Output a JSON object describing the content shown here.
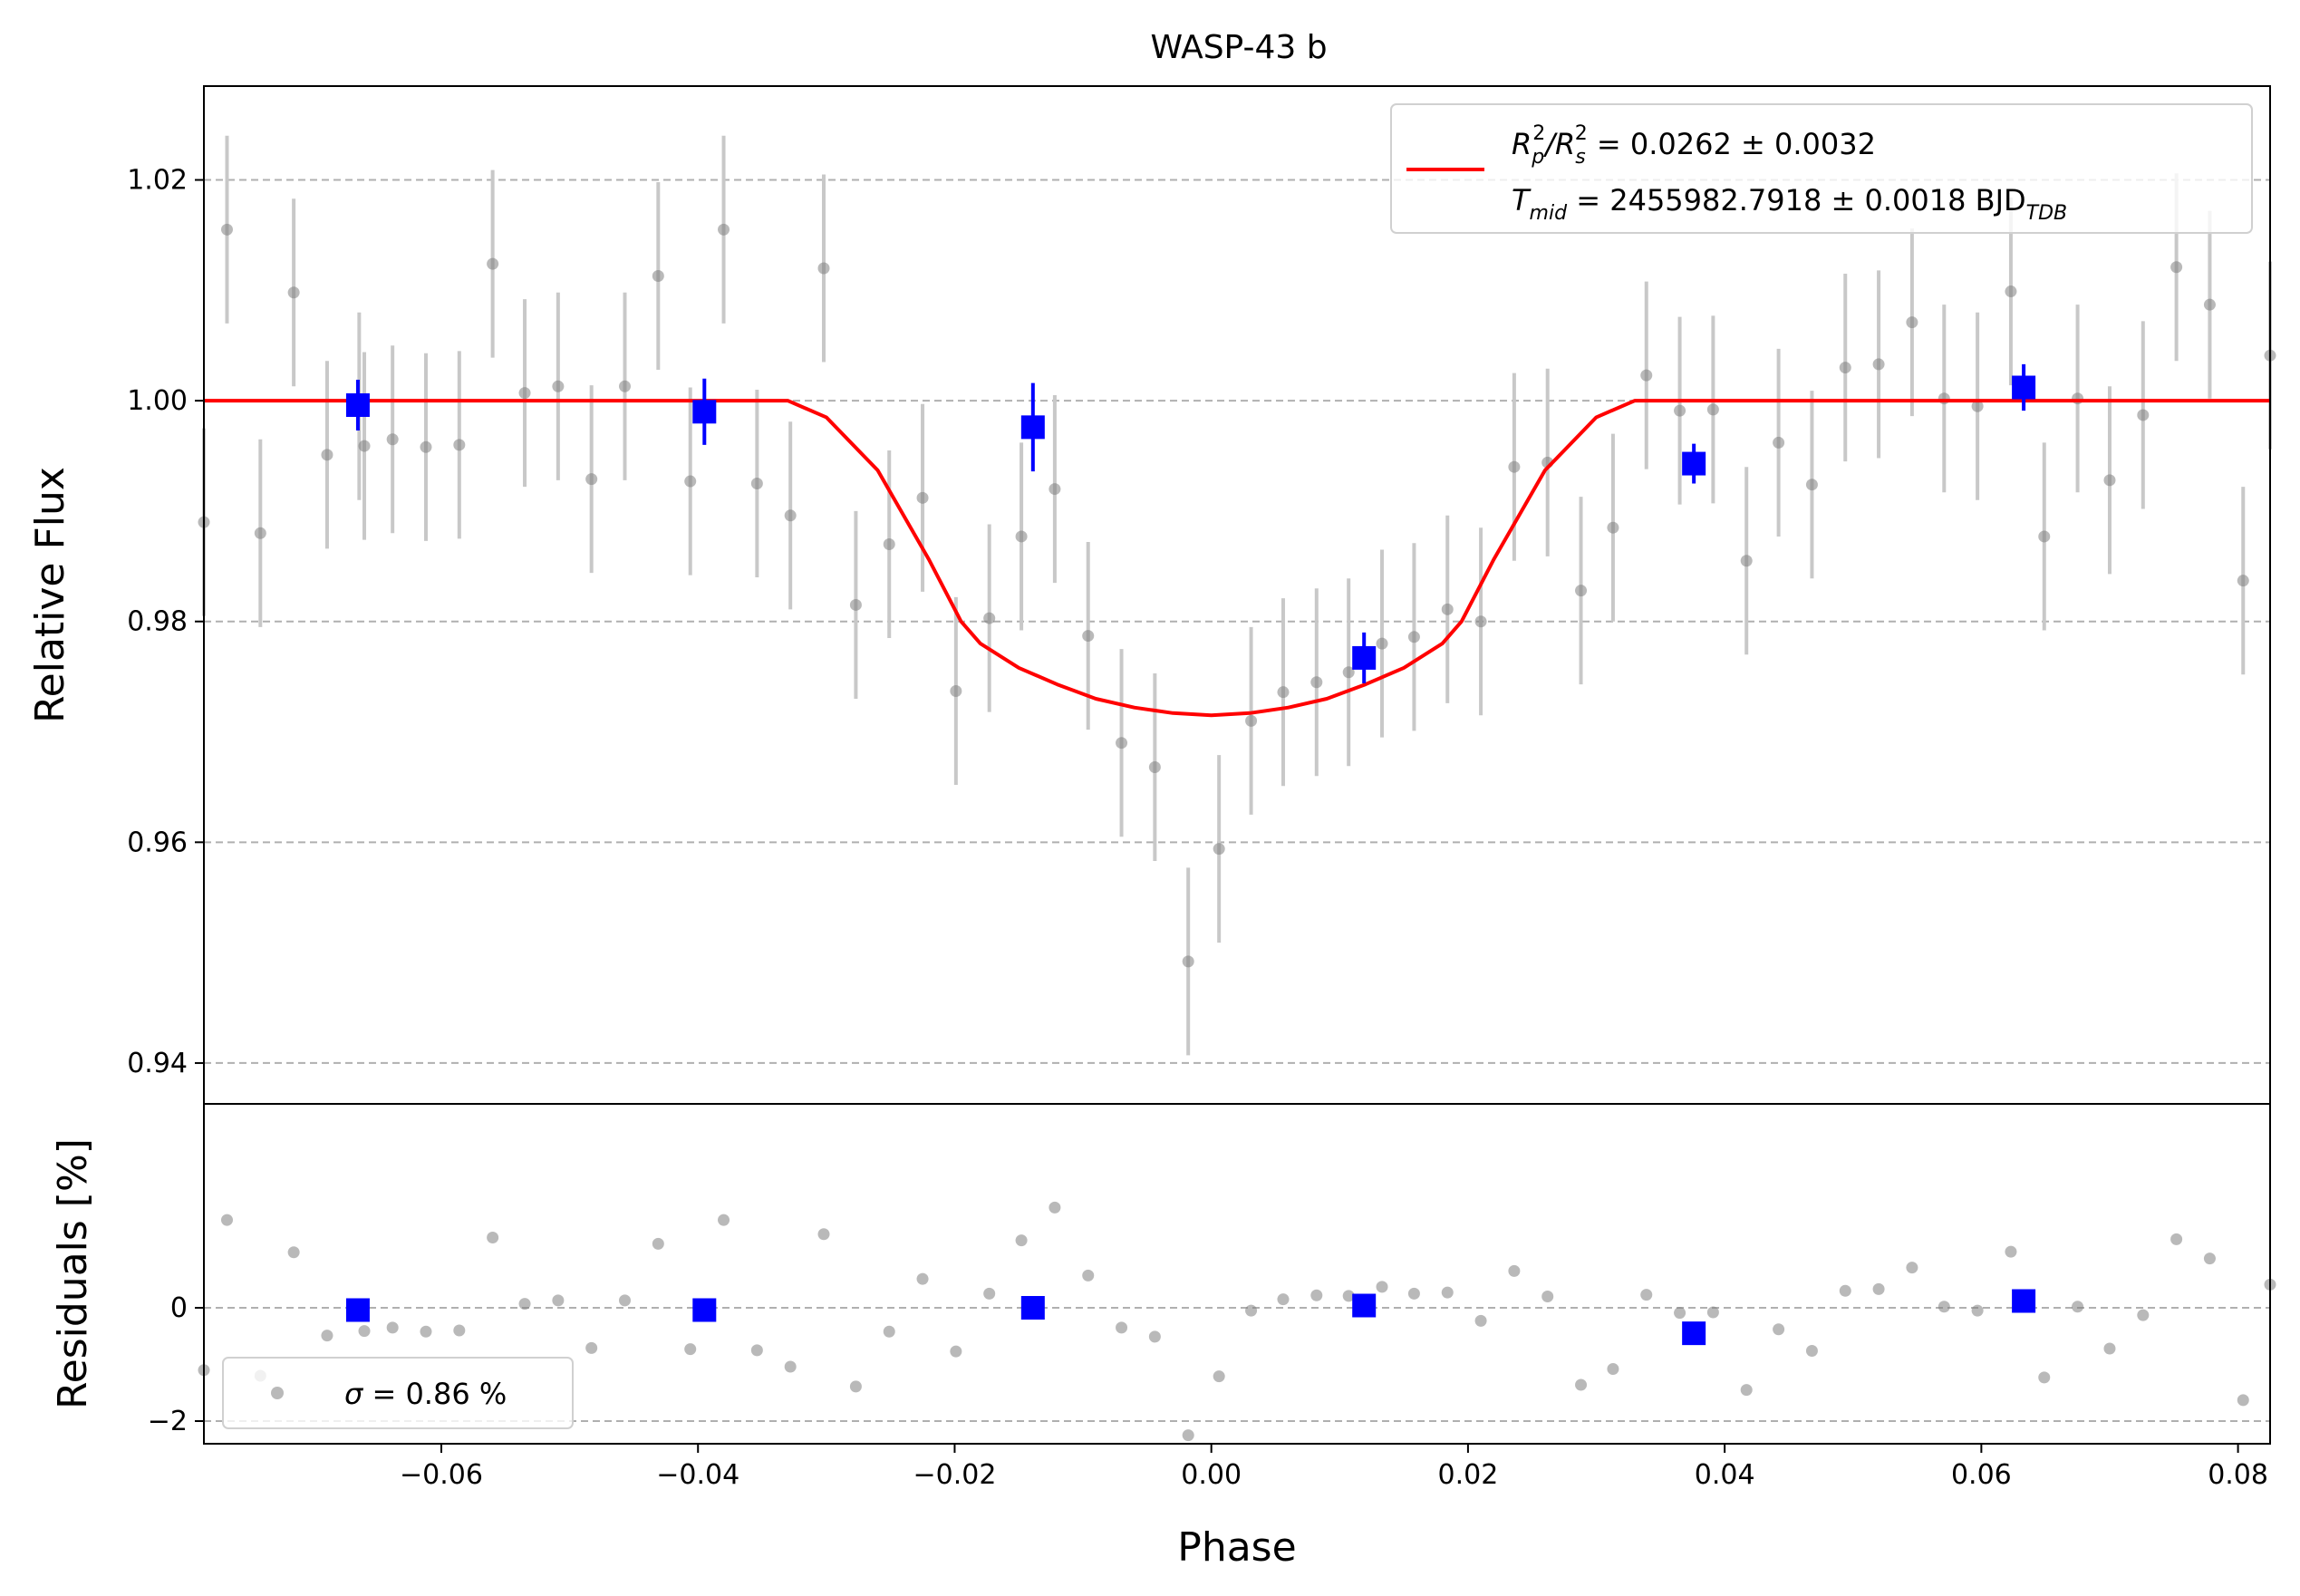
{
  "chart_data": {
    "type": "scatter",
    "title": "WASP-43 b",
    "xlabel": "Phase",
    "xlim": [
      -0.0785,
      0.0825
    ],
    "grid": "horizontal dashed",
    "colors": {
      "raw": "#808080",
      "raw_error": "#c8c8c8",
      "binned": "#0000ff",
      "model": "#ff0000"
    },
    "top_panel": {
      "ylabel": "Relative Flux",
      "ylim": [
        0.9363,
        1.0285
      ],
      "yticks": [
        0.94,
        0.96,
        0.98,
        1.0,
        1.02
      ],
      "ytick_labels": [
        "0.94",
        "0.96",
        "0.98",
        "1.00",
        "1.02"
      ],
      "legend": {
        "placement": "top-right",
        "line1_pre": "R",
        "line1_sub1": "p",
        "line1_sup1": "2",
        "line1_mid": "/R",
        "line1_sub2": "s",
        "line1_sup2": "2",
        "line1_post": " = 0.0262 ± 0.0032",
        "line2_pre": "T",
        "line2_sub": "mid",
        "line2_post": " = 2455982.7918 ± 0.0018 BJD",
        "line2_sub2": "TDB"
      },
      "raw": [
        {
          "x": -0.0785,
          "y": 0.989,
          "err": 0.0085
        },
        {
          "x": -0.0767,
          "y": 1.0155,
          "err": 0.0085
        },
        {
          "x": -0.0741,
          "y": 0.988,
          "err": 0.0085
        },
        {
          "x": -0.0715,
          "y": 1.0098,
          "err": 0.0085
        },
        {
          "x": -0.0689,
          "y": 0.9951,
          "err": 0.0085
        },
        {
          "x": -0.0664,
          "y": 0.9995,
          "err": 0.0085
        },
        {
          "x": -0.066,
          "y": 0.9959,
          "err": 0.0085
        },
        {
          "x": -0.0638,
          "y": 0.9965,
          "err": 0.0085
        },
        {
          "x": -0.0612,
          "y": 0.9958,
          "err": 0.0085
        },
        {
          "x": -0.0586,
          "y": 0.996,
          "err": 0.0085
        },
        {
          "x": -0.056,
          "y": 1.0124,
          "err": 0.0085
        },
        {
          "x": -0.0535,
          "y": 1.0007,
          "err": 0.0085
        },
        {
          "x": -0.0509,
          "y": 1.0013,
          "err": 0.0085
        },
        {
          "x": -0.0483,
          "y": 0.9929,
          "err": 0.0085
        },
        {
          "x": -0.0457,
          "y": 1.0013,
          "err": 0.0085
        },
        {
          "x": -0.0431,
          "y": 1.0113,
          "err": 0.0085
        },
        {
          "x": -0.0406,
          "y": 0.9927,
          "err": 0.0085
        },
        {
          "x": -0.038,
          "y": 1.0155,
          "err": 0.0085
        },
        {
          "x": -0.0354,
          "y": 0.9925,
          "err": 0.0085
        },
        {
          "x": -0.0328,
          "y": 0.9896,
          "err": 0.0085
        },
        {
          "x": -0.0302,
          "y": 1.012,
          "err": 0.0085
        },
        {
          "x": -0.0277,
          "y": 0.9815,
          "err": 0.0085
        },
        {
          "x": -0.0251,
          "y": 0.987,
          "err": 0.0085
        },
        {
          "x": -0.0225,
          "y": 0.9912,
          "err": 0.0085
        },
        {
          "x": -0.0199,
          "y": 0.9737,
          "err": 0.0085
        },
        {
          "x": -0.0173,
          "y": 0.9803,
          "err": 0.0085
        },
        {
          "x": -0.0148,
          "y": 0.9877,
          "err": 0.0085
        },
        {
          "x": -0.0122,
          "y": 0.992,
          "err": 0.0085
        },
        {
          "x": -0.0096,
          "y": 0.9787,
          "err": 0.0085
        },
        {
          "x": -0.007,
          "y": 0.969,
          "err": 0.0085
        },
        {
          "x": -0.0044,
          "y": 0.9668,
          "err": 0.0085
        },
        {
          "x": -0.0018,
          "y": 0.9492,
          "err": 0.0085
        },
        {
          "x": 0.0006,
          "y": 0.9594,
          "err": 0.0085
        },
        {
          "x": 0.0031,
          "y": 0.971,
          "err": 0.0085
        },
        {
          "x": 0.0056,
          "y": 0.9736,
          "err": 0.0085
        },
        {
          "x": 0.0082,
          "y": 0.9745,
          "err": 0.0085
        },
        {
          "x": 0.0107,
          "y": 0.9754,
          "err": 0.0085
        },
        {
          "x": 0.0133,
          "y": 0.978,
          "err": 0.0085
        },
        {
          "x": 0.0158,
          "y": 0.9786,
          "err": 0.0085
        },
        {
          "x": 0.0184,
          "y": 0.9811,
          "err": 0.0085
        },
        {
          "x": 0.021,
          "y": 0.98,
          "err": 0.0085
        },
        {
          "x": 0.0236,
          "y": 0.994,
          "err": 0.0085
        },
        {
          "x": 0.0262,
          "y": 0.9944,
          "err": 0.0085
        },
        {
          "x": 0.0288,
          "y": 0.9828,
          "err": 0.0085
        },
        {
          "x": 0.0313,
          "y": 0.9885,
          "err": 0.0085
        },
        {
          "x": 0.0339,
          "y": 1.0023,
          "err": 0.0085
        },
        {
          "x": 0.0365,
          "y": 0.9991,
          "err": 0.0085
        },
        {
          "x": 0.0391,
          "y": 0.9992,
          "err": 0.0085
        },
        {
          "x": 0.0417,
          "y": 0.9855,
          "err": 0.0085
        },
        {
          "x": 0.0442,
          "y": 0.9962,
          "err": 0.0085
        },
        {
          "x": 0.0468,
          "y": 0.9924,
          "err": 0.0085
        },
        {
          "x": 0.0494,
          "y": 1.003,
          "err": 0.0085
        },
        {
          "x": 0.052,
          "y": 1.0033,
          "err": 0.0085
        },
        {
          "x": 0.0546,
          "y": 1.0071,
          "err": 0.0085
        },
        {
          "x": 0.0571,
          "y": 1.0002,
          "err": 0.0085
        },
        {
          "x": 0.0597,
          "y": 0.9995,
          "err": 0.0085
        },
        {
          "x": 0.0623,
          "y": 1.0099,
          "err": 0.0085
        },
        {
          "x": 0.0649,
          "y": 0.9877,
          "err": 0.0085
        },
        {
          "x": 0.0675,
          "y": 1.0002,
          "err": 0.0085
        },
        {
          "x": 0.07,
          "y": 0.9928,
          "err": 0.0085
        },
        {
          "x": 0.0726,
          "y": 0.9987,
          "err": 0.0085
        },
        {
          "x": 0.0752,
          "y": 1.0121,
          "err": 0.0085
        },
        {
          "x": 0.0778,
          "y": 1.0087,
          "err": 0.0085
        },
        {
          "x": 0.0804,
          "y": 0.9837,
          "err": 0.0085
        },
        {
          "x": 0.0825,
          "y": 1.0041,
          "err": 0.0085
        }
      ],
      "binned": [
        {
          "x": -0.0665,
          "y": 0.9996,
          "err": 0.0023
        },
        {
          "x": -0.0395,
          "y": 0.999,
          "err": 0.003
        },
        {
          "x": -0.0139,
          "y": 0.9976,
          "err": 0.004
        },
        {
          "x": 0.0119,
          "y": 0.9767,
          "err": 0.0023
        },
        {
          "x": 0.0376,
          "y": 0.9943,
          "err": 0.0018
        },
        {
          "x": 0.0633,
          "y": 1.0012,
          "err": 0.0021
        }
      ],
      "model": {
        "x": [
          -0.0785,
          -0.033,
          -0.03,
          -0.026,
          -0.022,
          -0.0195,
          -0.018,
          -0.015,
          -0.012,
          -0.009,
          -0.006,
          -0.003,
          0.0,
          0.003,
          0.006,
          0.009,
          0.012,
          0.015,
          0.018,
          0.0195,
          0.022,
          0.026,
          0.03,
          0.033,
          0.0825
        ],
        "y": [
          1.0,
          1.0,
          0.9985,
          0.9937,
          0.9856,
          0.98,
          0.978,
          0.9758,
          0.9743,
          0.973,
          0.9722,
          0.9717,
          0.9715,
          0.9717,
          0.9722,
          0.973,
          0.9743,
          0.9758,
          0.978,
          0.98,
          0.9856,
          0.9937,
          0.9985,
          1.0,
          1.0
        ]
      }
    },
    "bottom_panel": {
      "ylabel": "Residuals [%]",
      "ylim": [
        -2.4,
        3.6
      ],
      "yticks": [
        -2,
        0
      ],
      "ytick_labels": [
        "−2",
        "0"
      ],
      "legend": {
        "placement": "lower-left",
        "sigma_symbol": "σ",
        "sigma_text": " = 0.86 %"
      },
      "raw": [
        {
          "x": -0.0785,
          "y": -1.1
        },
        {
          "x": -0.0767,
          "y": 1.55
        },
        {
          "x": -0.0741,
          "y": -1.2
        },
        {
          "x": -0.0715,
          "y": 0.98
        },
        {
          "x": -0.0689,
          "y": -0.49
        },
        {
          "x": -0.066,
          "y": -0.41
        },
        {
          "x": -0.0638,
          "y": -0.35
        },
        {
          "x": -0.0612,
          "y": -0.42
        },
        {
          "x": -0.0586,
          "y": -0.4
        },
        {
          "x": -0.056,
          "y": 1.24
        },
        {
          "x": -0.0535,
          "y": 0.07
        },
        {
          "x": -0.0509,
          "y": 0.13
        },
        {
          "x": -0.0483,
          "y": -0.71
        },
        {
          "x": -0.0457,
          "y": 0.13
        },
        {
          "x": -0.0431,
          "y": 1.13
        },
        {
          "x": -0.0406,
          "y": -0.73
        },
        {
          "x": -0.038,
          "y": 1.55
        },
        {
          "x": -0.0354,
          "y": -0.75
        },
        {
          "x": -0.0328,
          "y": -1.04
        },
        {
          "x": -0.0302,
          "y": 1.3
        },
        {
          "x": -0.0277,
          "y": -1.39
        },
        {
          "x": -0.0251,
          "y": -0.42
        },
        {
          "x": -0.0225,
          "y": 0.51
        },
        {
          "x": -0.0199,
          "y": -0.77
        },
        {
          "x": -0.0173,
          "y": 0.25
        },
        {
          "x": -0.0148,
          "y": 1.19
        },
        {
          "x": -0.0122,
          "y": 1.77
        },
        {
          "x": -0.0096,
          "y": 0.57
        },
        {
          "x": -0.007,
          "y": -0.35
        },
        {
          "x": -0.0044,
          "y": -0.51
        },
        {
          "x": -0.0018,
          "y": -2.25
        },
        {
          "x": 0.0006,
          "y": -1.21
        },
        {
          "x": 0.0031,
          "y": -0.05
        },
        {
          "x": 0.0056,
          "y": 0.15
        },
        {
          "x": 0.0082,
          "y": 0.22
        },
        {
          "x": 0.0107,
          "y": 0.21
        },
        {
          "x": 0.0133,
          "y": 0.37
        },
        {
          "x": 0.0158,
          "y": 0.25
        },
        {
          "x": 0.0184,
          "y": 0.27
        },
        {
          "x": 0.021,
          "y": -0.23
        },
        {
          "x": 0.0236,
          "y": 0.65
        },
        {
          "x": 0.0262,
          "y": 0.2
        },
        {
          "x": 0.0288,
          "y": -1.36
        },
        {
          "x": 0.0313,
          "y": -1.08
        },
        {
          "x": 0.0339,
          "y": 0.23
        },
        {
          "x": 0.0365,
          "y": -0.09
        },
        {
          "x": 0.0391,
          "y": -0.08
        },
        {
          "x": 0.0417,
          "y": -1.45
        },
        {
          "x": 0.0442,
          "y": -0.38
        },
        {
          "x": 0.0468,
          "y": -0.76
        },
        {
          "x": 0.0494,
          "y": 0.3
        },
        {
          "x": 0.052,
          "y": 0.33
        },
        {
          "x": 0.0546,
          "y": 0.71
        },
        {
          "x": 0.0571,
          "y": 0.02
        },
        {
          "x": 0.0597,
          "y": -0.05
        },
        {
          "x": 0.0623,
          "y": 0.99
        },
        {
          "x": 0.0649,
          "y": -1.23
        },
        {
          "x": 0.0675,
          "y": 0.02
        },
        {
          "x": 0.07,
          "y": -0.72
        },
        {
          "x": 0.0726,
          "y": -0.13
        },
        {
          "x": 0.0752,
          "y": 1.21
        },
        {
          "x": 0.0778,
          "y": 0.87
        },
        {
          "x": 0.0804,
          "y": -1.63
        },
        {
          "x": 0.0825,
          "y": 0.41
        }
      ],
      "binned": [
        {
          "x": -0.0665,
          "y": -0.04
        },
        {
          "x": -0.0395,
          "y": -0.04
        },
        {
          "x": -0.0139,
          "y": 0.0
        },
        {
          "x": 0.0119,
          "y": 0.04
        },
        {
          "x": 0.0376,
          "y": -0.45
        },
        {
          "x": 0.0633,
          "y": 0.12
        }
      ]
    },
    "xticks": [
      -0.06,
      -0.04,
      -0.02,
      0.0,
      0.02,
      0.04,
      0.06,
      0.08
    ],
    "xtick_labels": [
      "−0.06",
      "−0.04",
      "−0.02",
      "0.00",
      "0.02",
      "0.04",
      "0.06",
      "0.08"
    ]
  }
}
